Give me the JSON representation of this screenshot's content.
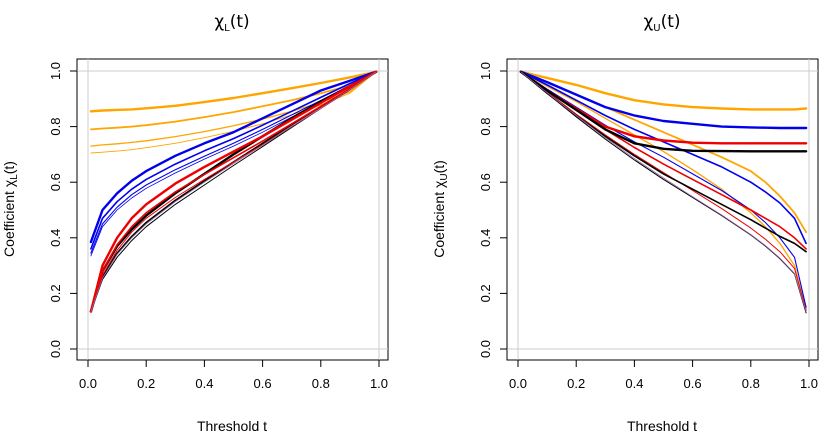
{
  "chart_data": [
    {
      "type": "line",
      "title": "χL(t)",
      "title_main": "χ",
      "title_sub": "L",
      "title_tail": "(t)",
      "xlabel": "Threshold t",
      "ylabel_main": "Coefficient χ",
      "ylabel_sub": "L",
      "ylabel_tail": "(t)",
      "xlim": [
        0,
        1
      ],
      "ylim": [
        0,
        1
      ],
      "xticks": [
        "0.0",
        "0.2",
        "0.4",
        "0.6",
        "0.8",
        "1.0"
      ],
      "yticks": [
        "0.0",
        "0.2",
        "0.4",
        "0.6",
        "0.8",
        "1.0"
      ],
      "grid_y": [
        0,
        1
      ],
      "x": [
        0.01,
        0.05,
        0.1,
        0.15,
        0.2,
        0.3,
        0.4,
        0.5,
        0.6,
        0.7,
        0.8,
        0.9,
        0.99
      ],
      "series": [
        {
          "name": "orange-1",
          "color": "#FFA500",
          "width": 2.4,
          "values": [
            0.855,
            0.858,
            0.86,
            0.862,
            0.866,
            0.875,
            0.888,
            0.903,
            0.92,
            0.938,
            0.957,
            0.977,
            0.997
          ]
        },
        {
          "name": "orange-2",
          "color": "#FFA500",
          "width": 1.8,
          "values": [
            0.79,
            0.793,
            0.796,
            0.8,
            0.805,
            0.818,
            0.834,
            0.852,
            0.873,
            0.895,
            0.92,
            0.948,
            0.997
          ]
        },
        {
          "name": "orange-3",
          "color": "#FFA500",
          "width": 1.3,
          "values": [
            0.73,
            0.734,
            0.738,
            0.743,
            0.749,
            0.764,
            0.782,
            0.803,
            0.827,
            0.855,
            0.887,
            0.925,
            0.997
          ]
        },
        {
          "name": "orange-4",
          "color": "#FFA500",
          "width": 0.9,
          "values": [
            0.705,
            0.708,
            0.712,
            0.717,
            0.724,
            0.74,
            0.76,
            0.783,
            0.81,
            0.842,
            0.878,
            0.92,
            0.997
          ]
        },
        {
          "name": "blue-1",
          "color": "#0000EE",
          "width": 2.4,
          "values": [
            0.385,
            0.5,
            0.56,
            0.605,
            0.64,
            0.695,
            0.74,
            0.78,
            0.83,
            0.88,
            0.93,
            0.965,
            0.997
          ]
        },
        {
          "name": "blue-2",
          "color": "#0000EE",
          "width": 1.6,
          "values": [
            0.36,
            0.47,
            0.53,
            0.575,
            0.61,
            0.665,
            0.713,
            0.757,
            0.805,
            0.855,
            0.905,
            0.955,
            0.997
          ]
        },
        {
          "name": "blue-3",
          "color": "#0000EE",
          "width": 1.1,
          "values": [
            0.345,
            0.45,
            0.51,
            0.555,
            0.59,
            0.645,
            0.693,
            0.74,
            0.79,
            0.842,
            0.894,
            0.948,
            0.997
          ]
        },
        {
          "name": "blue-4",
          "color": "#0000EE",
          "width": 0.8,
          "values": [
            0.335,
            0.44,
            0.5,
            0.543,
            0.578,
            0.633,
            0.683,
            0.73,
            0.78,
            0.834,
            0.888,
            0.944,
            0.997
          ]
        },
        {
          "name": "black-1",
          "color": "#000000",
          "width": 2.4,
          "values": [
            0.135,
            0.28,
            0.37,
            0.43,
            0.48,
            0.56,
            0.63,
            0.7,
            0.765,
            0.83,
            0.89,
            0.945,
            0.997
          ]
        },
        {
          "name": "black-2",
          "color": "#000000",
          "width": 1.6,
          "values": [
            0.135,
            0.26,
            0.345,
            0.405,
            0.455,
            0.535,
            0.605,
            0.673,
            0.74,
            0.807,
            0.872,
            0.935,
            0.997
          ]
        },
        {
          "name": "black-3",
          "color": "#000000",
          "width": 1.0,
          "values": [
            0.135,
            0.25,
            0.33,
            0.39,
            0.44,
            0.52,
            0.59,
            0.66,
            0.728,
            0.797,
            0.865,
            0.932,
            0.997
          ]
        },
        {
          "name": "red-1",
          "color": "#EE0000",
          "width": 2.4,
          "values": [
            0.135,
            0.3,
            0.4,
            0.47,
            0.52,
            0.595,
            0.655,
            0.71,
            0.765,
            0.825,
            0.885,
            0.945,
            0.997
          ]
        },
        {
          "name": "red-2",
          "color": "#EE0000",
          "width": 1.6,
          "values": [
            0.135,
            0.28,
            0.375,
            0.44,
            0.49,
            0.565,
            0.628,
            0.688,
            0.748,
            0.81,
            0.873,
            0.937,
            0.997
          ]
        },
        {
          "name": "red-3",
          "color": "#EE0000",
          "width": 1.0,
          "values": [
            0.135,
            0.265,
            0.355,
            0.42,
            0.47,
            0.545,
            0.61,
            0.673,
            0.735,
            0.8,
            0.866,
            0.933,
            0.997
          ]
        },
        {
          "name": "purple-1",
          "color": "#9966AA",
          "width": 0.8,
          "values": [
            0.135,
            0.255,
            0.34,
            0.4,
            0.45,
            0.53,
            0.6,
            0.667,
            0.733,
            0.8,
            0.866,
            0.933,
            0.997
          ]
        }
      ]
    },
    {
      "type": "line",
      "title": "χU(t)",
      "title_main": "χ",
      "title_sub": "U",
      "title_tail": "(t)",
      "xlabel": "Threshold t",
      "ylabel_main": "Coefficient χ",
      "ylabel_sub": "U",
      "ylabel_tail": "(t)",
      "xlim": [
        0,
        1
      ],
      "ylim": [
        0,
        1
      ],
      "xticks": [
        "0.0",
        "0.2",
        "0.4",
        "0.6",
        "0.8",
        "1.0"
      ],
      "yticks": [
        "0.0",
        "0.2",
        "0.4",
        "0.6",
        "0.8",
        "1.0"
      ],
      "grid_y": [
        0,
        1
      ],
      "x": [
        0.01,
        0.1,
        0.2,
        0.3,
        0.4,
        0.5,
        0.6,
        0.7,
        0.8,
        0.85,
        0.9,
        0.95,
        0.99
      ],
      "series": [
        {
          "name": "orange-1",
          "color": "#FFA500",
          "width": 2.4,
          "values": [
            0.997,
            0.975,
            0.95,
            0.92,
            0.895,
            0.88,
            0.87,
            0.865,
            0.862,
            0.862,
            0.862,
            0.862,
            0.865
          ]
        },
        {
          "name": "orange-2",
          "color": "#FFA500",
          "width": 1.8,
          "values": [
            0.997,
            0.96,
            0.915,
            0.87,
            0.825,
            0.78,
            0.735,
            0.69,
            0.64,
            0.6,
            0.55,
            0.49,
            0.42
          ]
        },
        {
          "name": "orange-3",
          "color": "#FFA500",
          "width": 1.3,
          "values": [
            0.997,
            0.945,
            0.89,
            0.83,
            0.77,
            0.71,
            0.645,
            0.575,
            0.49,
            0.44,
            0.38,
            0.3,
            0.14
          ]
        },
        {
          "name": "blue-1",
          "color": "#0000EE",
          "width": 2.4,
          "values": [
            0.997,
            0.96,
            0.915,
            0.87,
            0.84,
            0.82,
            0.81,
            0.8,
            0.797,
            0.796,
            0.795,
            0.795,
            0.795
          ]
        },
        {
          "name": "blue-2",
          "color": "#0000EE",
          "width": 1.6,
          "values": [
            0.997,
            0.95,
            0.895,
            0.84,
            0.79,
            0.745,
            0.7,
            0.655,
            0.6,
            0.565,
            0.525,
            0.47,
            0.38
          ]
        },
        {
          "name": "blue-3",
          "color": "#0000EE",
          "width": 1.1,
          "values": [
            0.997,
            0.935,
            0.87,
            0.805,
            0.745,
            0.69,
            0.63,
            0.57,
            0.5,
            0.455,
            0.4,
            0.33,
            0.15
          ]
        },
        {
          "name": "red-1",
          "color": "#EE0000",
          "width": 2.4,
          "values": [
            0.997,
            0.93,
            0.865,
            0.8,
            0.765,
            0.75,
            0.742,
            0.74,
            0.74,
            0.74,
            0.74,
            0.74,
            0.74
          ]
        },
        {
          "name": "red-2",
          "color": "#EE0000",
          "width": 1.6,
          "values": [
            0.997,
            0.93,
            0.86,
            0.79,
            0.725,
            0.665,
            0.61,
            0.555,
            0.5,
            0.47,
            0.44,
            0.4,
            0.36
          ]
        },
        {
          "name": "red-3",
          "color": "#EE0000",
          "width": 1.0,
          "values": [
            0.997,
            0.925,
            0.845,
            0.77,
            0.7,
            0.635,
            0.57,
            0.505,
            0.435,
            0.395,
            0.35,
            0.29,
            0.14
          ]
        },
        {
          "name": "black-1",
          "color": "#000000",
          "width": 2.4,
          "values": [
            0.997,
            0.93,
            0.86,
            0.79,
            0.74,
            0.72,
            0.713,
            0.712,
            0.711,
            0.711,
            0.711,
            0.711,
            0.711
          ]
        },
        {
          "name": "black-2",
          "color": "#000000",
          "width": 1.6,
          "values": [
            0.997,
            0.92,
            0.84,
            0.765,
            0.695,
            0.63,
            0.575,
            0.52,
            0.465,
            0.435,
            0.405,
            0.38,
            0.35
          ]
        },
        {
          "name": "black-3",
          "color": "#000000",
          "width": 1.0,
          "values": [
            0.997,
            0.92,
            0.835,
            0.755,
            0.68,
            0.61,
            0.545,
            0.48,
            0.41,
            0.37,
            0.325,
            0.27,
            0.13
          ]
        },
        {
          "name": "purple-1",
          "color": "#9966AA",
          "width": 0.8,
          "values": [
            0.997,
            0.922,
            0.84,
            0.76,
            0.685,
            0.615,
            0.548,
            0.482,
            0.412,
            0.372,
            0.327,
            0.272,
            0.135
          ]
        }
      ]
    }
  ]
}
